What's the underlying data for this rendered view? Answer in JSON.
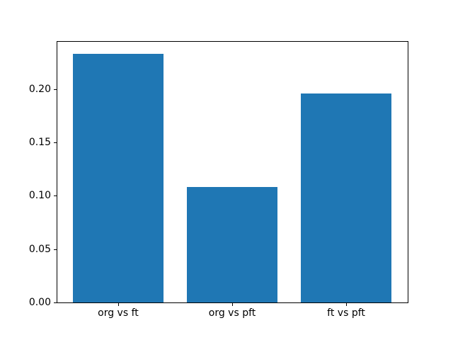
{
  "chart_data": {
    "type": "bar",
    "title": "",
    "xlabel": "",
    "ylabel": "",
    "categories": [
      "org vs ft",
      "org vs pft",
      "ft vs pft"
    ],
    "values": [
      0.233,
      0.108,
      0.196
    ],
    "yticks": [
      0.0,
      0.05,
      0.1,
      0.15,
      0.2
    ],
    "ytick_labels": [
      "0.00",
      "0.05",
      "0.10",
      "0.15",
      "0.20"
    ],
    "ylim": [
      0,
      0.245
    ],
    "bar_color": "#1f77b4",
    "spine_color": "#000000",
    "background_color": "#ffffff",
    "grid": false,
    "legend": null,
    "bar_width_fraction": 0.8
  }
}
